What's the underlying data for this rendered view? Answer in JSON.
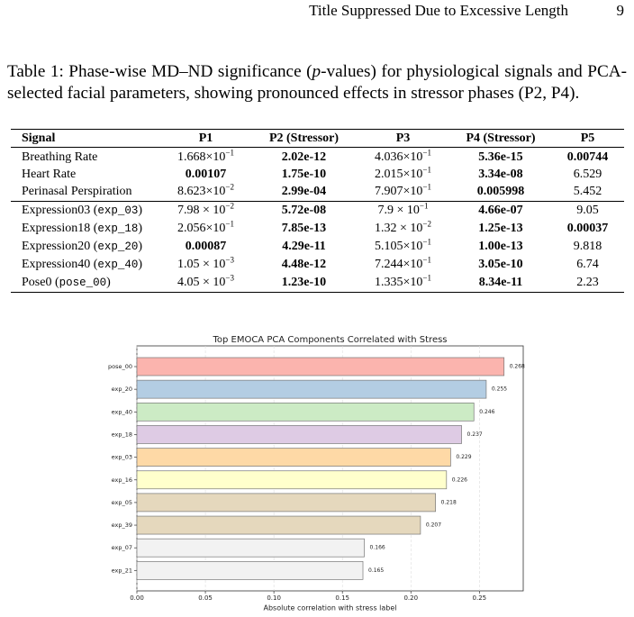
{
  "header": {
    "running_title": "Title Suppressed Due to Excessive Length",
    "page_number": "9"
  },
  "caption": [
    "Table 1: Phase-wise MD–ND significance (",
    "p",
    "-values) for physiological signals and PCA-selected facial parameters, showing pronounced effects in stressor phases (P2, P4)."
  ],
  "table": {
    "columns": [
      "Signal",
      "P1",
      "P2 (Stressor)",
      "P3",
      "P4 (Stressor)",
      "P5"
    ],
    "groups": [
      [
        {
          "signal": [
            "Breathing Rate"
          ],
          "cells": [
            {
              "text": "1.668×10",
              "sup": "−1"
            },
            {
              "text": "2.02e-12",
              "bold": true
            },
            {
              "text": "4.036×10",
              "sup": "−1"
            },
            {
              "text": "5.36e-15",
              "bold": true
            },
            {
              "text": "0.00744",
              "bold": true
            }
          ]
        },
        {
          "signal": [
            "Heart Rate"
          ],
          "cells": [
            {
              "text": "0.00107",
              "bold": true
            },
            {
              "text": "1.75e-10",
              "bold": true
            },
            {
              "text": "2.015×10",
              "sup": "−1"
            },
            {
              "text": "3.34e-08",
              "bold": true
            },
            {
              "text": "6.529"
            }
          ]
        },
        {
          "signal": [
            "Perinasal Perspiration"
          ],
          "cells": [
            {
              "text": "8.623×10",
              "sup": "−2"
            },
            {
              "text": "2.99e-04",
              "bold": true
            },
            {
              "text": "7.907×10",
              "sup": "−1"
            },
            {
              "text": "0.005998",
              "bold": true
            },
            {
              "text": "5.452"
            }
          ]
        }
      ],
      [
        {
          "signal": [
            "Expression03 (",
            "exp_03",
            ")"
          ],
          "cells": [
            {
              "text": "7.98 × 10",
              "sup": "−2"
            },
            {
              "text": "5.72e-08",
              "bold": true
            },
            {
              "text": "7.9  × 10",
              "sup": "−1"
            },
            {
              "text": "4.66e-07",
              "bold": true
            },
            {
              "text": "9.05"
            }
          ]
        },
        {
          "signal": [
            "Expression18 (",
            "exp_18",
            ")"
          ],
          "cells": [
            {
              "text": "2.056×10",
              "sup": "−1"
            },
            {
              "text": "7.85e-13",
              "bold": true
            },
            {
              "text": "1.32 × 10",
              "sup": "−2"
            },
            {
              "text": "1.25e-13",
              "bold": true
            },
            {
              "text": "0.00037",
              "bold": true
            }
          ]
        },
        {
          "signal": [
            "Expression20 (",
            "exp_20",
            ")"
          ],
          "cells": [
            {
              "text": "0.00087",
              "bold": true
            },
            {
              "text": "4.29e-11",
              "bold": true
            },
            {
              "text": "5.105×10",
              "sup": "−1"
            },
            {
              "text": "1.00e-13",
              "bold": true
            },
            {
              "text": "9.818"
            }
          ]
        },
        {
          "signal": [
            "Expression40 (",
            "exp_40",
            ")"
          ],
          "cells": [
            {
              "text": "1.05 × 10",
              "sup": "−3"
            },
            {
              "text": "4.48e-12",
              "bold": true
            },
            {
              "text": "7.244×10",
              "sup": "−1"
            },
            {
              "text": "3.05e-10",
              "bold": true
            },
            {
              "text": "6.74"
            }
          ]
        },
        {
          "signal": [
            "Pose0 (",
            "pose_00",
            ")"
          ],
          "cells": [
            {
              "text": "4.05 × 10",
              "sup": "−3"
            },
            {
              "text": "1.23e-10",
              "bold": true
            },
            {
              "text": "1.335×10",
              "sup": "−1"
            },
            {
              "text": "8.34e-11",
              "bold": true
            },
            {
              "text": "2.23"
            }
          ]
        }
      ]
    ]
  },
  "chart_data": {
    "type": "barh",
    "title": "Top EMOCA PCA Components Correlated with Stress",
    "x_label": "Absolute correlation with stress label",
    "categories": [
      "pose_00",
      "exp_20",
      "exp_40",
      "exp_18",
      "exp_03",
      "exp_16",
      "exp_05",
      "exp_39",
      "exp_07",
      "exp_21"
    ],
    "values": [
      0.268,
      0.255,
      0.246,
      0.237,
      0.229,
      0.226,
      0.218,
      0.207,
      0.166,
      0.165
    ],
    "colors": [
      "#fbb4ae",
      "#b3cde3",
      "#ccebc5",
      "#decbe4",
      "#fed9a6",
      "#ffffcc",
      "#e5d8bd",
      "#e5d8bd",
      "#f2f2f2",
      "#f2f2f2"
    ],
    "xlim": [
      0,
      0.282
    ],
    "xticks": [
      {
        "value": 0,
        "label": "0.00"
      },
      {
        "value": 0.05,
        "label": "0.05"
      },
      {
        "value": 0.1,
        "label": "0.10"
      },
      {
        "value": 0.15,
        "label": "0.15"
      },
      {
        "value": 0.2,
        "label": "0.20"
      },
      {
        "value": 0.25,
        "label": "0.25"
      }
    ],
    "grid": true
  }
}
